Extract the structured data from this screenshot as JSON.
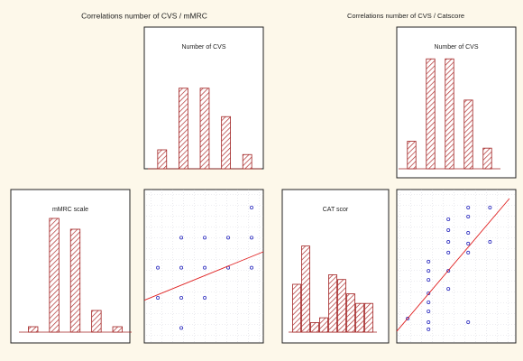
{
  "figure_titles": [
    "Correlations number of CVS / mMRC",
    "Correlations number of CVS / Catscore"
  ],
  "chart_data": [
    {
      "type": "histogram",
      "title": "Number of CVS",
      "values": [
        4,
        17,
        17,
        11,
        3
      ],
      "ylim": [
        0,
        20
      ],
      "color": "#a02020"
    },
    {
      "type": "histogram",
      "title": "mMRC scale",
      "values": [
        1,
        21,
        19,
        4,
        1
      ],
      "ylim": [
        0,
        24
      ],
      "color": "#a02020"
    },
    {
      "type": "scatter",
      "x": [
        4,
        1,
        2,
        3,
        4,
        0,
        1,
        2,
        3,
        4,
        0,
        1,
        2,
        1
      ],
      "values": [
        5,
        4,
        4,
        4,
        4,
        3,
        3,
        3,
        3,
        3,
        2,
        2,
        2,
        1
      ],
      "xlim": [
        -0.58,
        4.5
      ],
      "ylim": [
        0.5,
        5.6
      ],
      "color": "#3030c0",
      "fit": {
        "x": [
          -0.58,
          4.5
        ],
        "values": [
          1.92,
          3.53
        ],
        "color": "#e02020"
      },
      "grid": true
    },
    {
      "type": "histogram",
      "title": "Number of CVS",
      "values": [
        4,
        16,
        16,
        10,
        3
      ],
      "ylim": [
        0,
        18
      ],
      "color": "#a02020"
    },
    {
      "type": "histogram",
      "title": "CAT scor",
      "values": [
        10,
        18,
        2,
        3,
        12,
        11,
        8,
        6,
        6
      ],
      "ylim": [
        0,
        20
      ],
      "color": "#a02020"
    },
    {
      "type": "scatter",
      "x": [
        0.55,
        1.6,
        1.6,
        1.6,
        1.6,
        1.6,
        1.6,
        1.6,
        1.6,
        2.6,
        2.6,
        2.6,
        2.6,
        2.6,
        2.6,
        3.6,
        3.6,
        3.6,
        3.6,
        3.6,
        3.6,
        4.7,
        4.7
      ],
      "values": [
        1.27,
        1.65,
        2.12,
        2.59,
        1.08,
        0.71,
        4.24,
        3.76,
        3.29,
        6.45,
        5.88,
        5.27,
        4.71,
        3.76,
        2.82,
        7.06,
        6.59,
        5.74,
        5.18,
        4.71,
        1.08,
        7.06,
        5.27
      ],
      "xlim": [
        0,
        6
      ],
      "ylim": [
        0,
        8
      ],
      "color": "#3030c0",
      "fit": {
        "x": [
          0,
          5.68
        ],
        "values": [
          0.61,
          7.53
        ],
        "color": "#e02020"
      },
      "grid": true
    }
  ]
}
